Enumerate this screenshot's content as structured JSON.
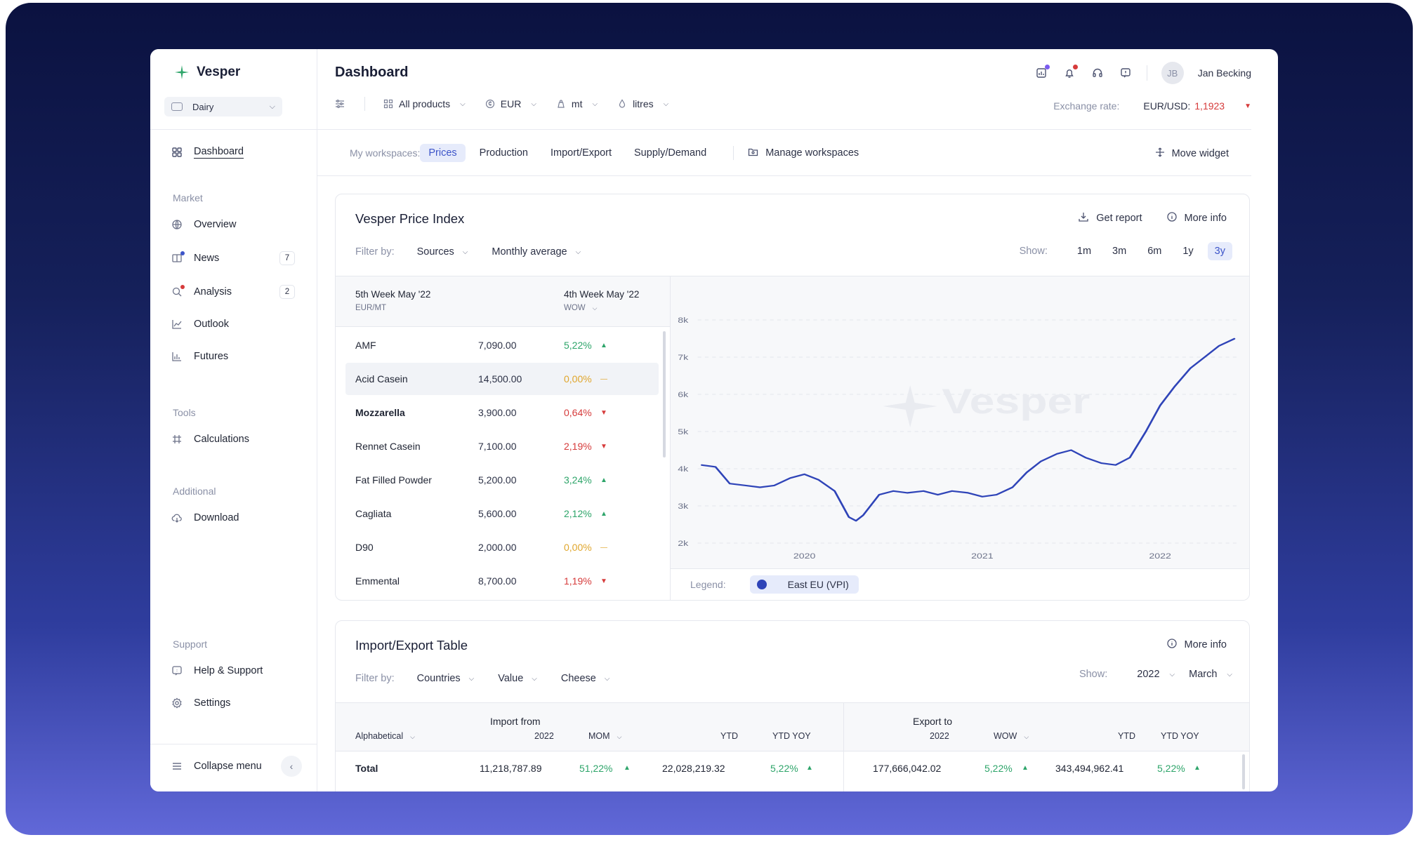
{
  "app": {
    "name": "Vesper",
    "product": "Dairy"
  },
  "sidebar": {
    "dashboard": "Dashboard",
    "market_title": "Market",
    "market": [
      {
        "label": "Overview",
        "icon": "globe-icon"
      },
      {
        "label": "News",
        "icon": "news-icon",
        "count": "7"
      },
      {
        "label": "Analysis",
        "icon": "analysis-icon",
        "count": "2"
      },
      {
        "label": "Outlook",
        "icon": "line-chart-icon"
      },
      {
        "label": "Futures",
        "icon": "bar-chart-icon"
      }
    ],
    "tools_title": "Tools",
    "tools": [
      {
        "label": "Calculations",
        "icon": "calculator-icon"
      }
    ],
    "additional_title": "Additional",
    "additional": [
      {
        "label": "Download",
        "icon": "cloud-download-icon"
      }
    ],
    "support_title": "Support",
    "support": [
      {
        "label": "Help & Support",
        "icon": "help-icon"
      },
      {
        "label": "Settings",
        "icon": "gear-icon"
      }
    ],
    "collapse": "Collapse menu"
  },
  "header": {
    "title": "Dashboard",
    "user_initials": "JB",
    "user_name": "Jan Becking",
    "filters": {
      "products": "All products",
      "currency": "EUR",
      "unit": "mt",
      "volume": "litres"
    },
    "exchange": {
      "label": "Exchange rate:",
      "pair": "EUR/USD:",
      "value": "1,1923"
    }
  },
  "workspaces": {
    "label": "My workspaces:",
    "tabs": [
      "Prices",
      "Production",
      "Import/Export",
      "Supply/Demand"
    ],
    "active": "Prices",
    "manage": "Manage workspaces",
    "move": "Move widget"
  },
  "vpi": {
    "title": "Vesper Price Index",
    "get_report": "Get report",
    "more_info": "More info",
    "filter_label": "Filter by:",
    "filter_sources": "Sources",
    "filter_avg": "Monthly average",
    "show_label": "Show:",
    "ranges": [
      "1m",
      "3m",
      "6m",
      "1y",
      "3y"
    ],
    "active_range": "3y",
    "col1": "5th Week May '22",
    "col1_sub": "EUR/MT",
    "col2": "4th Week May '22",
    "col2_sub": "WOW",
    "rows": [
      {
        "name": "AMF",
        "value": "7,090.00",
        "pct": "5,22%",
        "trend": "up"
      },
      {
        "name": "Acid Casein",
        "value": "14,500.00",
        "pct": "0,00%",
        "trend": "flat"
      },
      {
        "name": "Mozzarella",
        "value": "3,900.00",
        "pct": "0,64%",
        "trend": "down"
      },
      {
        "name": "Rennet Casein",
        "value": "7,100.00",
        "pct": "2,19%",
        "trend": "down"
      },
      {
        "name": "Fat Filled Powder",
        "value": "5,200.00",
        "pct": "3,24%",
        "trend": "up"
      },
      {
        "name": "Cagliata",
        "value": "5,600.00",
        "pct": "2,12%",
        "trend": "up"
      },
      {
        "name": "D90",
        "value": "2,000.00",
        "pct": "0,00%",
        "trend": "flat"
      },
      {
        "name": "Emmental",
        "value": "8,700.00",
        "pct": "1,19%",
        "trend": "down"
      }
    ],
    "legend_label": "Legend:",
    "legend_series": "East EU (VPI)",
    "watermark": "Vesper"
  },
  "chart_data": {
    "type": "line",
    "ylim": [
      2000,
      8000
    ],
    "yticks": [
      "2k",
      "3k",
      "4k",
      "5k",
      "6k",
      "7k",
      "8k"
    ],
    "xticks": [
      "2020",
      "2021",
      "2022"
    ],
    "x": [
      2019.42,
      2019.5,
      2019.58,
      2019.67,
      2019.75,
      2019.83,
      2019.92,
      2020.0,
      2020.08,
      2020.17,
      2020.25,
      2020.29,
      2020.33,
      2020.42,
      2020.5,
      2020.58,
      2020.67,
      2020.75,
      2020.83,
      2020.92,
      2021.0,
      2021.08,
      2021.17,
      2021.25,
      2021.33,
      2021.42,
      2021.5,
      2021.58,
      2021.67,
      2021.75,
      2021.83,
      2021.92,
      2022.0,
      2022.08,
      2022.17,
      2022.25,
      2022.33,
      2022.42
    ],
    "series": [
      {
        "name": "East EU (VPI)",
        "color": "#2f44b8",
        "values": [
          4100,
          4050,
          3600,
          3550,
          3500,
          3550,
          3750,
          3850,
          3700,
          3400,
          2700,
          2600,
          2750,
          3300,
          3400,
          3350,
          3400,
          3300,
          3400,
          3350,
          3250,
          3300,
          3500,
          3900,
          4200,
          4400,
          4500,
          4300,
          4150,
          4100,
          4300,
          5000,
          5700,
          6200,
          6700,
          7000,
          7300,
          7500
        ]
      }
    ]
  },
  "import_export": {
    "title": "Import/Export Table",
    "more_info": "More info",
    "filter_label": "Filter by:",
    "filters": [
      "Countries",
      "Value",
      "Cheese"
    ],
    "show_label": "Show:",
    "year": "2022",
    "month": "March",
    "sort": "Alphabetical",
    "import_title": "Import from",
    "export_title": "Export to",
    "import_cols": [
      "2022",
      "MOM",
      "YTD",
      "YTD YOY"
    ],
    "export_cols": [
      "2022",
      "WOW",
      "YTD",
      "YTD YOY"
    ],
    "total_row": {
      "label": "Total",
      "imp_value": "11,218,787.89",
      "imp_mom": "51,22%",
      "imp_ytd": "22,028,219.32",
      "imp_yoy": "5,22%",
      "exp_value": "177,666,042.02",
      "exp_wow": "5,22%",
      "exp_ytd": "343,494,962.41",
      "exp_yoy": "5,22%"
    }
  }
}
